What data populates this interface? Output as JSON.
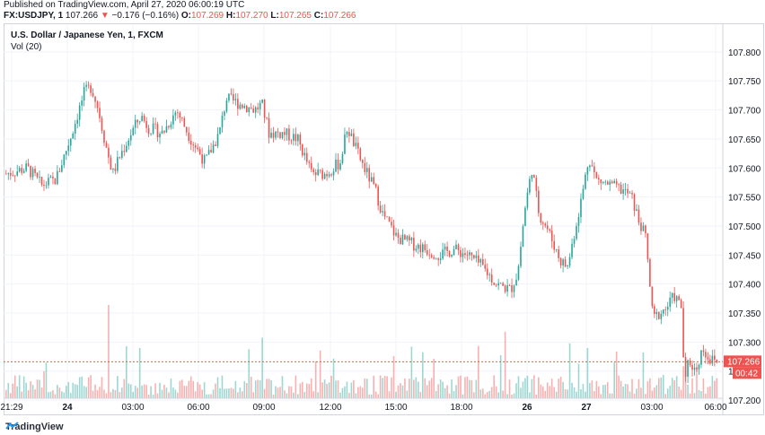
{
  "header": {
    "published": "Published on TradingView.com, April 27, 2020 06:00:19 UTC",
    "symbol": "FX:USDJPY, 1",
    "last": "107.266",
    "change_arrow": "▼",
    "change": "−0.176 (−0.16%)",
    "o_label": "O:",
    "o_value": "107.269",
    "h_label": "H:",
    "h_value": "107.270",
    "l_label": "L:",
    "l_value": "107.265",
    "c_label": "C:",
    "c_value": "107.266"
  },
  "legend": {
    "title": "U.S. Dollar / Japanese Yen, 1, FXCM",
    "volume": "Vol (20)"
  },
  "price_badge": "107.266",
  "countdown_badge": "00:42",
  "footer": {
    "brand": "TradingView"
  },
  "colors": {
    "up": "#26a69a",
    "down": "#ef5350",
    "grid": "#f0f3fa",
    "axis_text": "#131722",
    "price_line": "#ef5350"
  },
  "chart_data": {
    "type": "candlestick",
    "title": "U.S. Dollar / Japanese Yen, 1, FXCM",
    "ylim": [
      107.15,
      107.85
    ],
    "y_ticks": [
      "107.800",
      "107.750",
      "107.700",
      "107.650",
      "107.600",
      "107.550",
      "107.500",
      "107.450",
      "107.400",
      "107.350",
      "107.300",
      "107.250",
      "107.200"
    ],
    "x_ticks": [
      "21:29",
      "24",
      "03:00",
      "06:00",
      "09:00",
      "12:00",
      "15:00",
      "18:00",
      "26",
      "27",
      "03:00",
      "06:00"
    ],
    "last_price": 107.266,
    "close_path": [
      [
        0,
        107.59
      ],
      [
        3,
        107.6
      ],
      [
        5,
        107.57
      ],
      [
        7,
        107.58
      ],
      [
        9,
        107.65
      ],
      [
        10,
        107.69
      ],
      [
        11,
        107.73
      ],
      [
        12,
        107.74
      ],
      [
        13,
        107.7
      ],
      [
        14,
        107.64
      ],
      [
        15,
        107.59
      ],
      [
        16,
        107.62
      ],
      [
        18,
        107.67
      ],
      [
        19,
        107.69
      ],
      [
        20,
        107.67
      ],
      [
        22,
        107.66
      ],
      [
        24,
        107.7
      ],
      [
        26,
        107.65
      ],
      [
        28,
        107.61
      ],
      [
        30,
        107.66
      ],
      [
        31,
        107.72
      ],
      [
        33,
        107.71
      ],
      [
        35,
        107.7
      ],
      [
        36,
        107.71
      ],
      [
        37,
        107.66
      ],
      [
        39,
        107.66
      ],
      [
        41,
        107.65
      ],
      [
        43,
        107.59
      ],
      [
        45,
        107.59
      ],
      [
        47,
        107.61
      ],
      [
        48,
        107.67
      ],
      [
        50,
        107.61
      ],
      [
        52,
        107.56
      ],
      [
        53,
        107.52
      ],
      [
        55,
        107.48
      ],
      [
        57,
        107.47
      ],
      [
        59,
        107.46
      ],
      [
        61,
        107.45
      ],
      [
        63,
        107.46
      ],
      [
        65,
        107.45
      ],
      [
        67,
        107.43
      ],
      [
        69,
        107.4
      ],
      [
        71,
        107.39
      ],
      [
        72,
        107.42
      ],
      [
        73,
        107.53
      ],
      [
        74,
        107.6
      ],
      [
        75,
        107.52
      ],
      [
        76,
        107.5
      ],
      [
        77,
        107.47
      ],
      [
        78,
        107.44
      ],
      [
        79,
        107.43
      ],
      [
        80,
        107.49
      ],
      [
        81,
        107.55
      ],
      [
        82,
        107.62
      ],
      [
        83,
        107.58
      ],
      [
        85,
        107.57
      ],
      [
        87,
        107.56
      ],
      [
        88,
        107.55
      ],
      [
        89,
        107.51
      ],
      [
        90,
        107.48
      ],
      [
        91,
        107.34
      ],
      [
        92,
        107.35
      ],
      [
        93,
        107.36
      ],
      [
        94,
        107.38
      ],
      [
        95,
        107.36
      ],
      [
        95.5,
        107.22
      ],
      [
        96,
        107.27
      ],
      [
        97,
        107.25
      ],
      [
        98,
        107.29
      ],
      [
        99,
        107.27
      ],
      [
        100,
        107.266
      ]
    ]
  }
}
